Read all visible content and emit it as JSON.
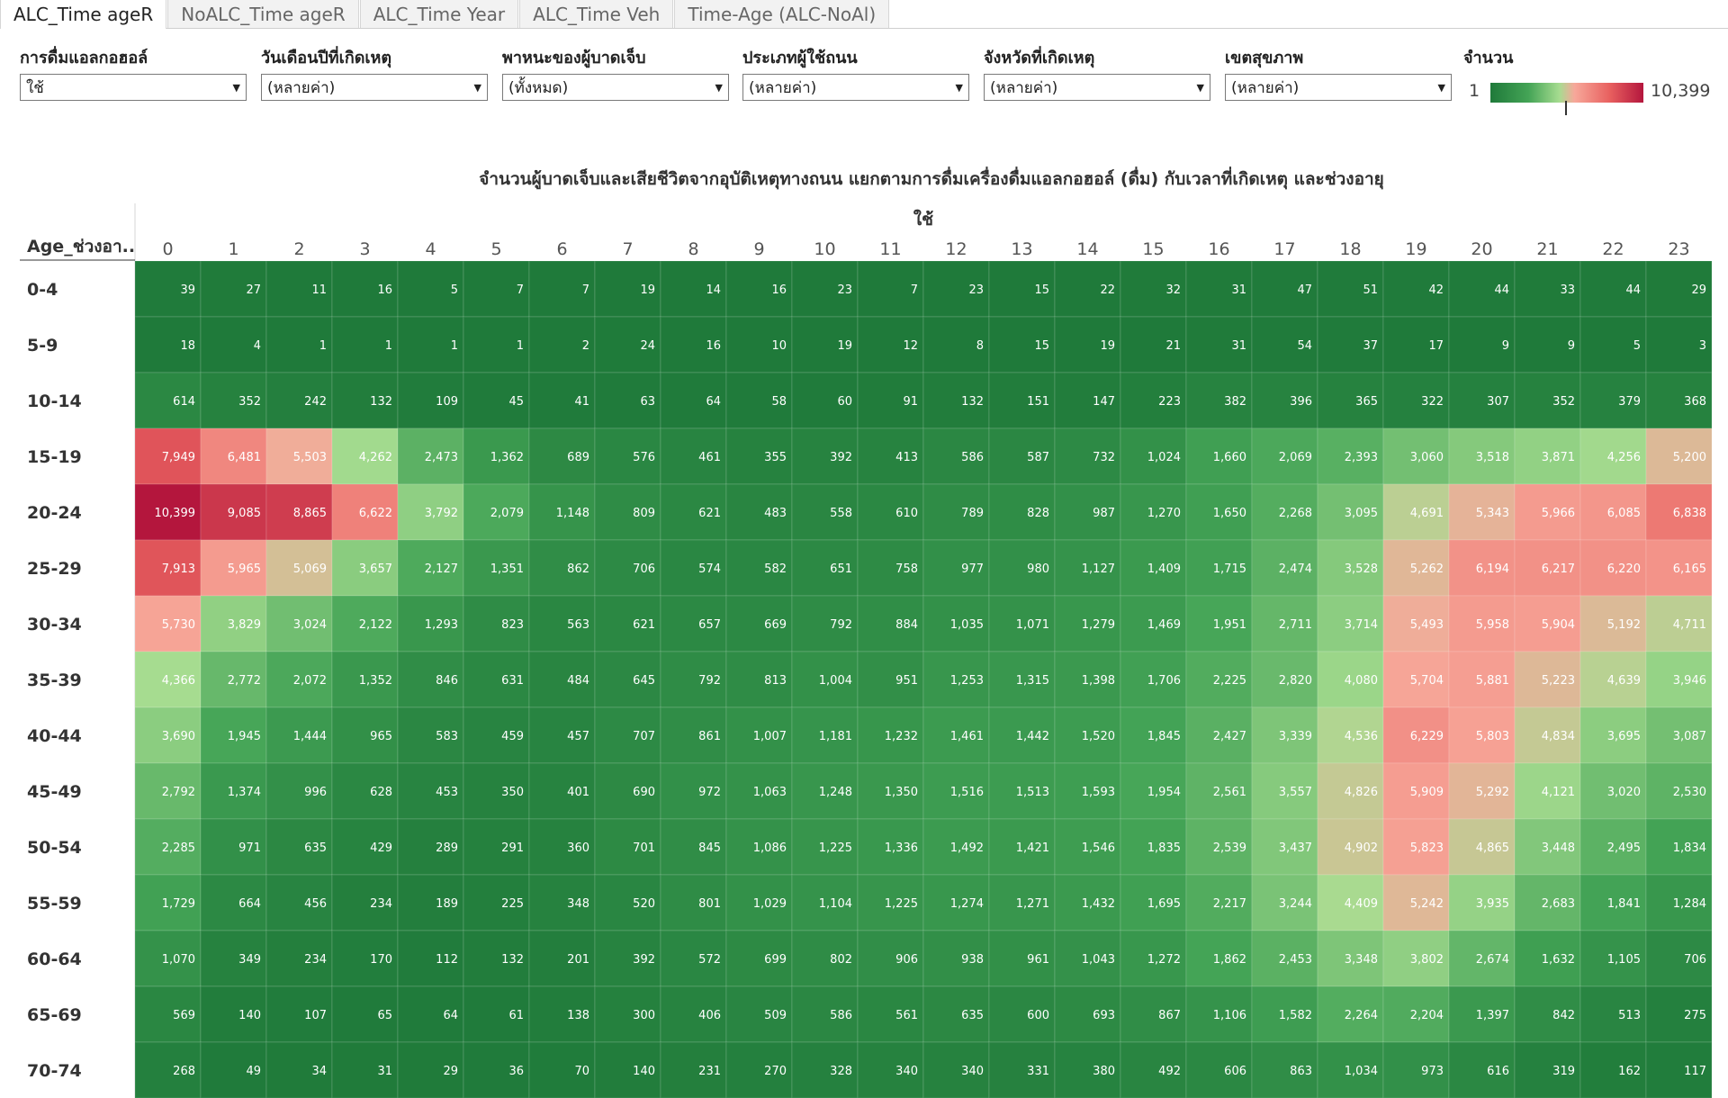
{
  "tabs": [
    {
      "label": "ALC_Time ageR",
      "active": true
    },
    {
      "label": "NoALC_Time ageR",
      "active": false
    },
    {
      "label": "ALC_Time Year",
      "active": false
    },
    {
      "label": "ALC_Time Veh",
      "active": false
    },
    {
      "label": "Time-Age (ALC-NoAl)",
      "active": false
    }
  ],
  "filters": [
    {
      "label": "การดื่มแอลกอฮอล์",
      "value": "ใช้"
    },
    {
      "label": "วันเดือนปีที่เกิดเหตุ",
      "value": "(หลายค่า)"
    },
    {
      "label": "พาหนะของผู้บาดเจ็บ",
      "value": "(ทั้งหมด)"
    },
    {
      "label": "ประเภทผู้ใช้ถนน",
      "value": "(หลายค่า)"
    },
    {
      "label": "จังหวัดที่เกิดเหตุ",
      "value": "(หลายค่า)"
    },
    {
      "label": "เขตสุขภาพ",
      "value": "(หลายค่า)"
    }
  ],
  "legend": {
    "title": "จำนวน",
    "min_label": "1",
    "max_label": "10,399",
    "colors": [
      "#1f7a3a",
      "#44a456",
      "#a6dc90",
      "#f7a89a",
      "#e8605f",
      "#b4163d"
    ]
  },
  "chart_data": {
    "type": "heatmap",
    "title": "จำนวนผู้บาดเจ็บและเสียชีวิตจากอุบัติเหตุทางถนน   แยกตามการดื่มเครื่องดื่มแอลกอฮอล์ (ดื่ม) กับเวลาที่เกิดเหตุ และช่วงอายุ",
    "column_group_label": "ใช้",
    "row_header": "Age_ช่วงอา..",
    "x": [
      "0",
      "1",
      "2",
      "3",
      "4",
      "5",
      "6",
      "7",
      "8",
      "9",
      "10",
      "11",
      "12",
      "13",
      "14",
      "15",
      "16",
      "17",
      "18",
      "19",
      "20",
      "21",
      "22",
      "23"
    ],
    "y": [
      "0-4",
      "5-9",
      "10-14",
      "15-19",
      "20-24",
      "25-29",
      "30-34",
      "35-39",
      "40-44",
      "45-49",
      "50-54",
      "55-59",
      "60-64",
      "65-69",
      "70-74"
    ],
    "values": [
      [
        39,
        27,
        11,
        16,
        5,
        7,
        7,
        19,
        14,
        16,
        23,
        7,
        23,
        15,
        22,
        32,
        31,
        47,
        51,
        42,
        44,
        33,
        44,
        29
      ],
      [
        18,
        4,
        1,
        1,
        1,
        1,
        2,
        24,
        16,
        10,
        19,
        12,
        8,
        15,
        19,
        21,
        31,
        54,
        37,
        17,
        9,
        9,
        5,
        3
      ],
      [
        614,
        352,
        242,
        132,
        109,
        45,
        41,
        63,
        64,
        58,
        60,
        91,
        132,
        151,
        147,
        223,
        382,
        396,
        365,
        322,
        307,
        352,
        379,
        368
      ],
      [
        7949,
        6481,
        5503,
        4262,
        2473,
        1362,
        689,
        576,
        461,
        355,
        392,
        413,
        586,
        587,
        732,
        1024,
        1660,
        2069,
        2393,
        3060,
        3518,
        3871,
        4256,
        5200
      ],
      [
        10399,
        9085,
        8865,
        6622,
        3792,
        2079,
        1148,
        809,
        621,
        483,
        558,
        610,
        789,
        828,
        987,
        1270,
        1650,
        2268,
        3095,
        4691,
        5343,
        5966,
        6085,
        6838
      ],
      [
        7913,
        5965,
        5069,
        3657,
        2127,
        1351,
        862,
        706,
        574,
        582,
        651,
        758,
        977,
        980,
        1127,
        1409,
        1715,
        2474,
        3528,
        5262,
        6194,
        6217,
        6220,
        6165
      ],
      [
        5730,
        3829,
        3024,
        2122,
        1293,
        823,
        563,
        621,
        657,
        669,
        792,
        884,
        1035,
        1071,
        1279,
        1469,
        1951,
        2711,
        3714,
        5493,
        5958,
        5904,
        5192,
        4711
      ],
      [
        4366,
        2772,
        2072,
        1352,
        846,
        631,
        484,
        645,
        792,
        813,
        1004,
        951,
        1253,
        1315,
        1398,
        1706,
        2225,
        2820,
        4080,
        5704,
        5881,
        5223,
        4639,
        3946
      ],
      [
        3690,
        1945,
        1444,
        965,
        583,
        459,
        457,
        707,
        861,
        1007,
        1181,
        1232,
        1461,
        1442,
        1520,
        1845,
        2427,
        3339,
        4536,
        6229,
        5803,
        4834,
        3695,
        3087
      ],
      [
        2792,
        1374,
        996,
        628,
        453,
        350,
        401,
        690,
        972,
        1063,
        1248,
        1350,
        1516,
        1513,
        1593,
        1954,
        2561,
        3557,
        4826,
        5909,
        5292,
        4121,
        3020,
        2530
      ],
      [
        2285,
        971,
        635,
        429,
        289,
        291,
        360,
        701,
        845,
        1086,
        1225,
        1336,
        1492,
        1421,
        1546,
        1835,
        2539,
        3437,
        4902,
        5823,
        4865,
        3448,
        2495,
        1834
      ],
      [
        1729,
        664,
        456,
        234,
        189,
        225,
        348,
        520,
        801,
        1029,
        1104,
        1225,
        1274,
        1271,
        1432,
        1695,
        2217,
        3244,
        4409,
        5242,
        3935,
        2683,
        1841,
        1284
      ],
      [
        1070,
        349,
        234,
        170,
        112,
        132,
        201,
        392,
        572,
        699,
        802,
        906,
        938,
        961,
        1043,
        1272,
        1862,
        2453,
        3348,
        3802,
        2674,
        1632,
        1105,
        706
      ],
      [
        569,
        140,
        107,
        65,
        64,
        61,
        138,
        300,
        406,
        509,
        586,
        561,
        635,
        600,
        693,
        867,
        1106,
        1582,
        2264,
        2204,
        1397,
        842,
        513,
        275
      ],
      [
        268,
        49,
        34,
        31,
        29,
        36,
        70,
        140,
        231,
        270,
        328,
        340,
        340,
        331,
        380,
        492,
        606,
        863,
        1034,
        973,
        616,
        319,
        162,
        117
      ]
    ],
    "value_range": [
      1,
      10399
    ]
  }
}
